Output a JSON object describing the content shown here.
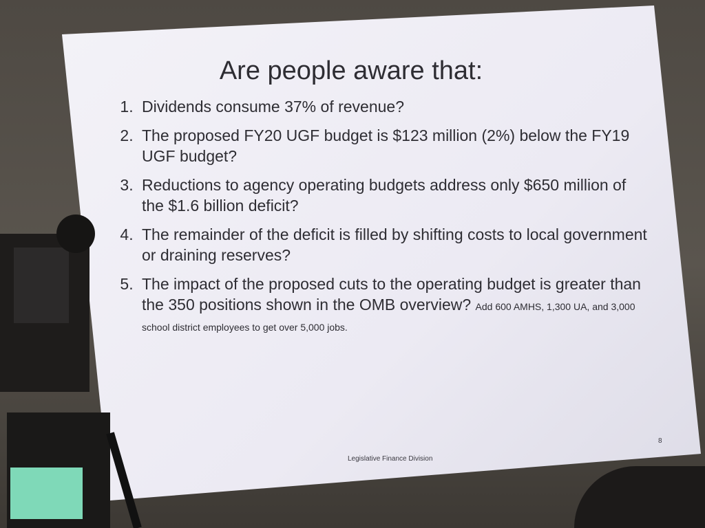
{
  "slide": {
    "title": "Are people aware that:",
    "items": [
      {
        "text": "Dividends consume 37% of revenue?"
      },
      {
        "text": "The proposed FY20 UGF budget is $123 million (2%) below the FY19 UGF budget?"
      },
      {
        "text": "Reductions to agency operating budgets address only $650 million of the $1.6 billion deficit?"
      },
      {
        "text": "The remainder of the deficit is filled by shifting costs to local government or draining reserves?"
      },
      {
        "text": "The impact of the proposed cuts to the operating budget is greater than the 350 positions shown in the OMB overview?",
        "note": "Add 600 AMHS, 1,300 UA, and 3,000 school district employees to get over 5,000 jobs."
      }
    ],
    "footer": "Legislative Finance Division",
    "page_number": "8"
  }
}
